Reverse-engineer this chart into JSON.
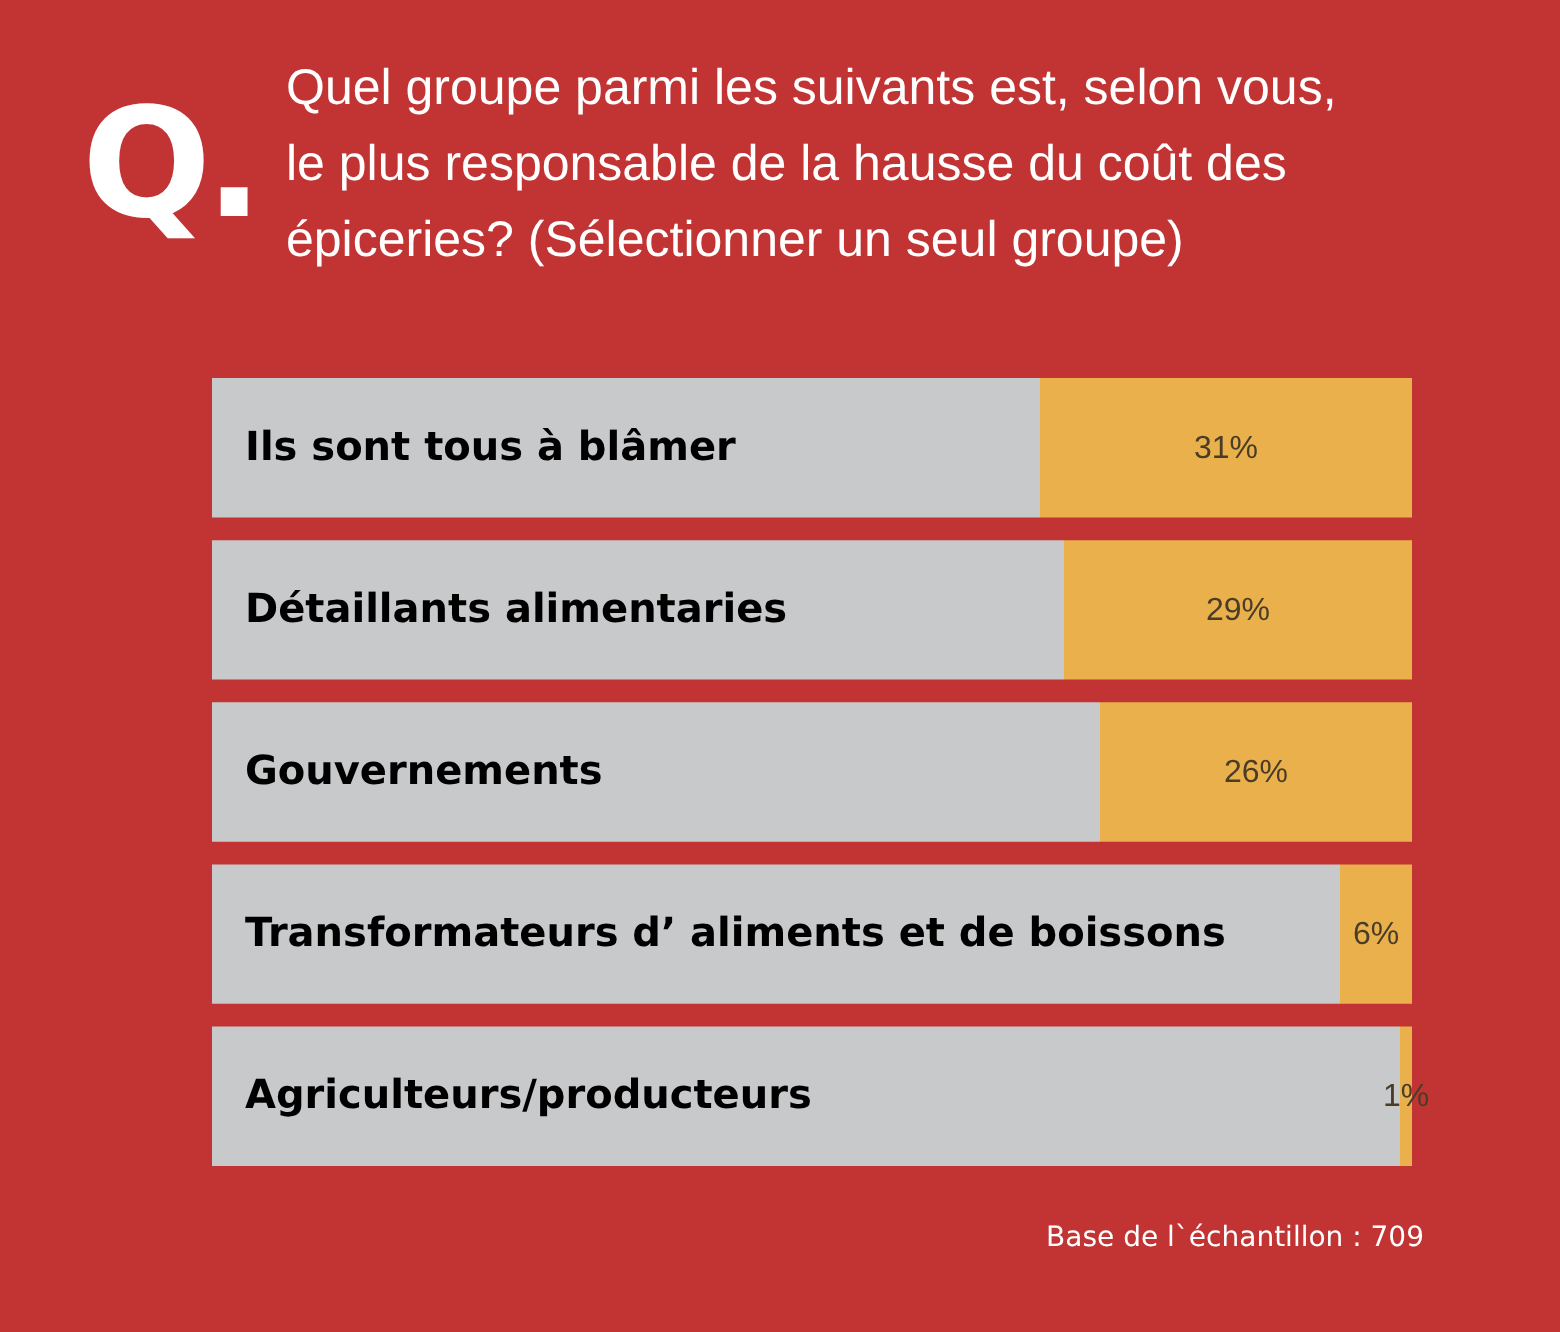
{
  "chart_data": {
    "type": "bar",
    "title": "Quel groupe parmi les suivants est, selon vous, le plus responsable de la hausse du coût des épiceries? (Sélectionner un seul groupe)",
    "annotations": [
      "Q.",
      "Base de l`échantillon : 709"
    ],
    "categories": [
      "Ils sont tous à blâmer",
      "Détaillants alimentaries",
      "Gouvernements",
      "Transformateurs d’ aliments et de boissons",
      "Agriculteurs/producteurs"
    ],
    "orientation": "horizontal",
    "stacked": true,
    "xlim": [
      0,
      100
    ],
    "tick_labels": "y",
    "series": [
      {
        "color": "#c8c9cb",
        "values": [
          69,
          71,
          74,
          94,
          99
        ]
      },
      {
        "color": "#e9b04c",
        "values": [
          31,
          29,
          26,
          6,
          1
        ],
        "value_labels": [
          "31%",
          "29%",
          "26%",
          "6%",
          "1%"
        ]
      }
    ]
  }
}
